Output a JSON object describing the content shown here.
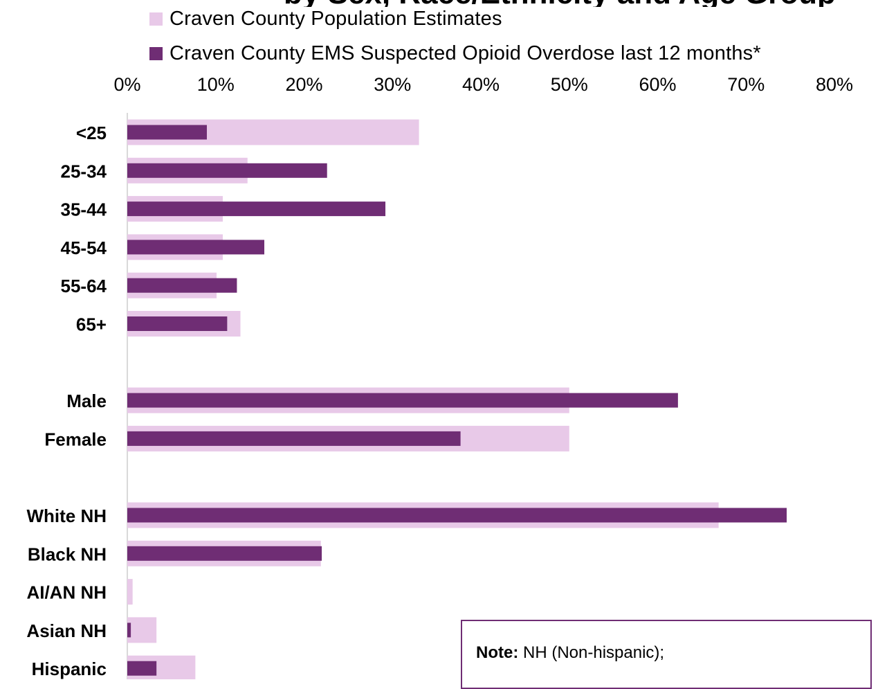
{
  "page": {
    "title_fragment": "by Sex, Race/Ethnicity and Age Group"
  },
  "colors": {
    "population": "#e8c9e8",
    "ems": "#6f2d74",
    "axis": "#d9d9d9",
    "note_border": "#6f2d74"
  },
  "chart_data": {
    "type": "bar",
    "orientation": "horizontal",
    "series": [
      {
        "name": "Craven County Population Estimates",
        "values": [
          33,
          13.6,
          10.8,
          10.8,
          10.1,
          12.8,
          50,
          50,
          66.9,
          21.9,
          0.6,
          3.3,
          7.7
        ]
      },
      {
        "name": "Craven County EMS Suspected Opioid Overdose last 12 months*",
        "values": [
          9,
          22.6,
          29.2,
          15.5,
          12.4,
          11.3,
          62.3,
          37.7,
          74.6,
          22,
          0,
          0.4,
          3.3
        ]
      }
    ],
    "categories": [
      "<25",
      "25-34",
      "35-44",
      "45-54",
      "55-64",
      "65+",
      "Male",
      "Female",
      "White NH",
      "Black NH",
      "AI/AN NH",
      "Asian NH",
      "Hispanic"
    ],
    "groups": [
      [
        "<25",
        "25-34",
        "35-44",
        "45-54",
        "55-64",
        "65+"
      ],
      [
        "Male",
        "Female"
      ],
      [
        "White NH",
        "Black NH",
        "AI/AN NH",
        "Asian NH",
        "Hispanic"
      ]
    ],
    "x_ticks": [
      "0%",
      "10%",
      "20%",
      "30%",
      "40%",
      "50%",
      "60%",
      "70%",
      "80%"
    ],
    "xlim": [
      0,
      80
    ],
    "x_axis_position": "top",
    "legend_position": "top",
    "grid": false
  },
  "note": {
    "label": "Note:",
    "text": "NH (Non-hispanic);"
  }
}
